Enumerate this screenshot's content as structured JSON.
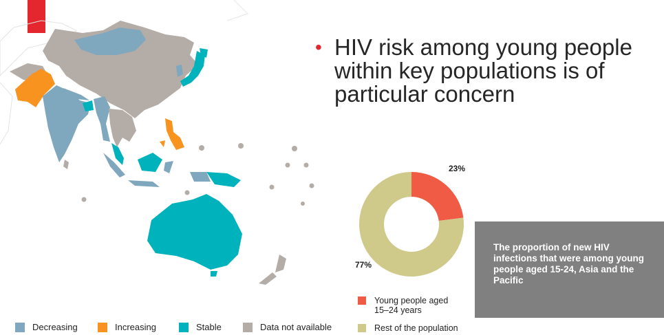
{
  "bullet_text": "HIV risk among young people within key populations is of particular concern",
  "colors": {
    "accent": "#e4262e",
    "decreasing": "#7fa7bd",
    "increasing": "#f7931e",
    "stable": "#00b2bb",
    "not_available": "#b3aca7",
    "young": "#ef5b45",
    "rest": "#cfc98a",
    "note_bg": "#808080"
  },
  "map_legend": [
    {
      "label": "Decreasing",
      "color": "#7fa7bd"
    },
    {
      "label": "Increasing",
      "color": "#f7931e"
    },
    {
      "label": "Stable",
      "color": "#00b2bb"
    },
    {
      "label": "Data not available",
      "color": "#b3aca7"
    }
  ],
  "note": "The proportion of new HIV infections that were among young people aged 15-24, Asia and the Pacific",
  "chart_data": {
    "type": "pie",
    "donut": true,
    "categories": [
      "Young people aged 15–24 years",
      "Rest of the population"
    ],
    "values": [
      23,
      77
    ],
    "data_labels": [
      "23%",
      "77%"
    ],
    "colors": [
      "#ef5b45",
      "#cfc98a"
    ],
    "legend_position": "bottom"
  },
  "pie_legend": [
    {
      "label_line1": "Young people aged",
      "label_line2": "15–24 years",
      "color": "#ef5b45"
    },
    {
      "label_line1": "Rest of the population",
      "label_line2": "",
      "color": "#cfc98a"
    }
  ]
}
